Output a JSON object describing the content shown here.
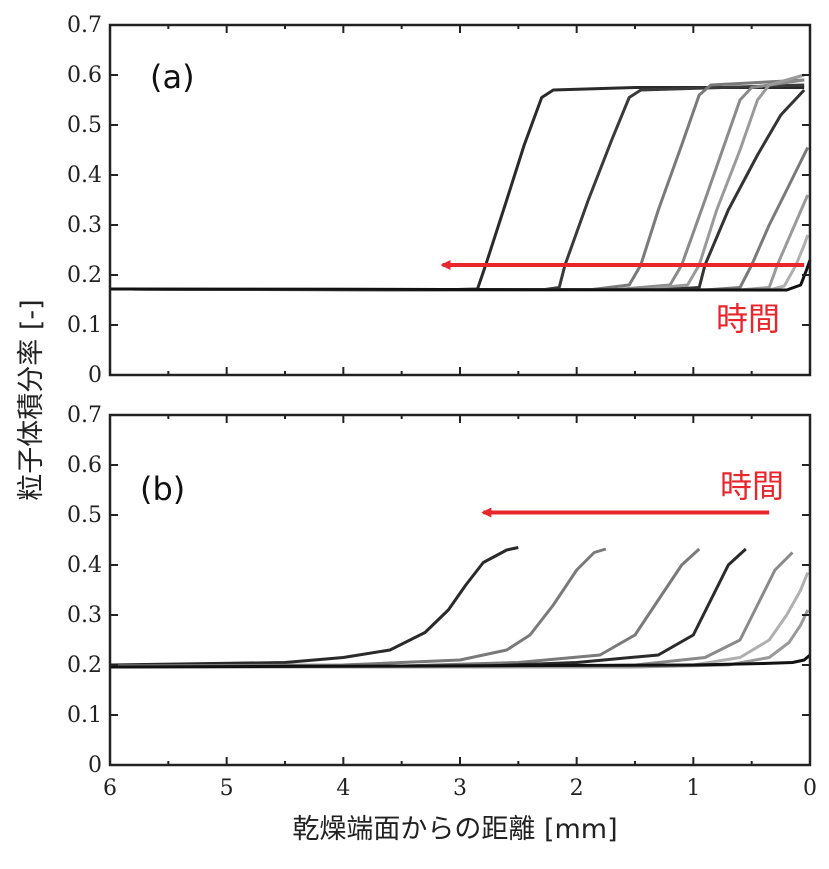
{
  "chart_data": [
    {
      "type": "line",
      "panel_label": "(a)",
      "xlim": [
        6,
        0
      ],
      "ylim": [
        0,
        0.7
      ],
      "x_ticks": [
        "6",
        "5",
        "4",
        "3",
        "2",
        "1",
        "0"
      ],
      "y_ticks": [
        "0",
        "0.1",
        "0.2",
        "0.3",
        "0.4",
        "0.5",
        "0.6",
        "0.7"
      ],
      "annotation": {
        "text": "時間",
        "color": "#e8262c",
        "arrow_from_x": 0.05,
        "arrow_to_x": 3.15,
        "arrow_y": 0.22
      },
      "series": [
        {
          "color": "#2a2a2a",
          "points": [
            [
              6,
              0.172
            ],
            [
              3.2,
              0.17
            ],
            [
              2.85,
              0.172
            ],
            [
              2.78,
              0.22
            ],
            [
              2.6,
              0.35
            ],
            [
              2.45,
              0.46
            ],
            [
              2.3,
              0.555
            ],
            [
              2.2,
              0.57
            ],
            [
              1.5,
              0.575
            ],
            [
              0.05,
              0.575
            ]
          ]
        },
        {
          "color": "#3a3a3a",
          "points": [
            [
              6,
              0.172
            ],
            [
              2.3,
              0.17
            ],
            [
              2.15,
              0.175
            ],
            [
              2.1,
              0.22
            ],
            [
              1.9,
              0.35
            ],
            [
              1.7,
              0.47
            ],
            [
              1.55,
              0.555
            ],
            [
              1.45,
              0.57
            ],
            [
              0.05,
              0.58
            ]
          ]
        },
        {
          "color": "#7a7a7a",
          "points": [
            [
              6,
              0.172
            ],
            [
              1.9,
              0.17
            ],
            [
              1.55,
              0.18
            ],
            [
              1.45,
              0.22
            ],
            [
              1.3,
              0.33
            ],
            [
              1.1,
              0.46
            ],
            [
              0.95,
              0.56
            ],
            [
              0.85,
              0.58
            ],
            [
              0.05,
              0.59
            ]
          ]
        },
        {
          "color": "#8a8a8a",
          "points": [
            [
              6,
              0.172
            ],
            [
              1.7,
              0.17
            ],
            [
              1.2,
              0.18
            ],
            [
              1.1,
              0.22
            ],
            [
              0.9,
              0.35
            ],
            [
              0.75,
              0.45
            ],
            [
              0.6,
              0.55
            ],
            [
              0.5,
              0.575
            ],
            [
              0.05,
              0.59
            ]
          ]
        },
        {
          "color": "#9a9a9a",
          "points": [
            [
              6,
              0.172
            ],
            [
              1.5,
              0.17
            ],
            [
              1.05,
              0.18
            ],
            [
              0.95,
              0.22
            ],
            [
              0.8,
              0.33
            ],
            [
              0.6,
              0.45
            ],
            [
              0.45,
              0.55
            ],
            [
              0.35,
              0.58
            ],
            [
              0.05,
              0.6
            ]
          ]
        },
        {
          "color": "#333333",
          "points": [
            [
              6,
              0.172
            ],
            [
              1.3,
              0.17
            ],
            [
              0.95,
              0.175
            ],
            [
              0.9,
              0.22
            ],
            [
              0.7,
              0.33
            ],
            [
              0.45,
              0.44
            ],
            [
              0.25,
              0.52
            ],
            [
              0.05,
              0.57
            ]
          ]
        },
        {
          "color": "#7a7a7a",
          "points": [
            [
              6,
              0.172
            ],
            [
              0.9,
              0.17
            ],
            [
              0.6,
              0.175
            ],
            [
              0.5,
              0.22
            ],
            [
              0.35,
              0.3
            ],
            [
              0.2,
              0.37
            ],
            [
              0.02,
              0.455
            ]
          ]
        },
        {
          "color": "#9a9a9a",
          "points": [
            [
              6,
              0.172
            ],
            [
              0.6,
              0.17
            ],
            [
              0.35,
              0.175
            ],
            [
              0.28,
              0.22
            ],
            [
              0.15,
              0.29
            ],
            [
              0.02,
              0.36
            ]
          ]
        },
        {
          "color": "#b0b0b0",
          "points": [
            [
              6,
              0.172
            ],
            [
              0.35,
              0.17
            ],
            [
              0.22,
              0.178
            ],
            [
              0.12,
              0.22
            ],
            [
              0.05,
              0.26
            ],
            [
              0.02,
              0.28
            ]
          ]
        },
        {
          "color": "#111111",
          "points": [
            [
              6,
              0.172
            ],
            [
              0.2,
              0.17
            ],
            [
              0.08,
              0.18
            ],
            [
              0.03,
              0.21
            ],
            [
              0.0,
              0.23
            ]
          ]
        }
      ]
    },
    {
      "type": "line",
      "panel_label": "(b)",
      "xlim": [
        6,
        0
      ],
      "ylim": [
        0,
        0.7
      ],
      "x_ticks": [
        "6",
        "5",
        "4",
        "3",
        "2",
        "1",
        "0"
      ],
      "y_ticks": [
        "0",
        "0.1",
        "0.2",
        "0.3",
        "0.4",
        "0.5",
        "0.6",
        "0.7"
      ],
      "xlabel": "乾燥端面からの距離 [mm]",
      "annotation": {
        "text": "時間",
        "color": "#e8262c",
        "arrow_from_x": 0.35,
        "arrow_to_x": 2.8,
        "arrow_y": 0.505
      },
      "series": [
        {
          "color": "#2a2a2a",
          "points": [
            [
              6,
              0.2
            ],
            [
              4.5,
              0.205
            ],
            [
              4.0,
              0.215
            ],
            [
              3.6,
              0.23
            ],
            [
              3.3,
              0.265
            ],
            [
              3.1,
              0.31
            ],
            [
              2.95,
              0.36
            ],
            [
              2.8,
              0.405
            ],
            [
              2.6,
              0.43
            ],
            [
              2.5,
              0.435
            ]
          ]
        },
        {
          "color": "#7a7a7a",
          "points": [
            [
              6,
              0.198
            ],
            [
              4.0,
              0.2
            ],
            [
              3.0,
              0.21
            ],
            [
              2.6,
              0.23
            ],
            [
              2.4,
              0.26
            ],
            [
              2.2,
              0.32
            ],
            [
              2.0,
              0.39
            ],
            [
              1.85,
              0.425
            ],
            [
              1.75,
              0.432
            ]
          ]
        },
        {
          "color": "#7a7a7a",
          "points": [
            [
              6,
              0.196
            ],
            [
              3.5,
              0.198
            ],
            [
              2.5,
              0.205
            ],
            [
              1.8,
              0.22
            ],
            [
              1.5,
              0.26
            ],
            [
              1.3,
              0.33
            ],
            [
              1.1,
              0.4
            ],
            [
              0.95,
              0.432
            ]
          ]
        },
        {
          "color": "#2a2a2a",
          "points": [
            [
              6,
              0.196
            ],
            [
              3.0,
              0.196
            ],
            [
              2.0,
              0.205
            ],
            [
              1.3,
              0.22
            ],
            [
              1.0,
              0.26
            ],
            [
              0.85,
              0.33
            ],
            [
              0.7,
              0.4
            ],
            [
              0.55,
              0.432
            ]
          ]
        },
        {
          "color": "#8a8a8a",
          "points": [
            [
              6,
              0.196
            ],
            [
              2.5,
              0.196
            ],
            [
              1.5,
              0.2
            ],
            [
              0.9,
              0.215
            ],
            [
              0.6,
              0.25
            ],
            [
              0.45,
              0.32
            ],
            [
              0.3,
              0.39
            ],
            [
              0.15,
              0.425
            ]
          ]
        },
        {
          "color": "#b0b0b0",
          "points": [
            [
              6,
              0.196
            ],
            [
              2.0,
              0.196
            ],
            [
              1.0,
              0.2
            ],
            [
              0.6,
              0.215
            ],
            [
              0.35,
              0.25
            ],
            [
              0.2,
              0.3
            ],
            [
              0.08,
              0.35
            ],
            [
              0.02,
              0.385
            ]
          ]
        },
        {
          "color": "#9a9a9a",
          "points": [
            [
              6,
              0.196
            ],
            [
              1.5,
              0.196
            ],
            [
              0.7,
              0.2
            ],
            [
              0.35,
              0.215
            ],
            [
              0.18,
              0.245
            ],
            [
              0.08,
              0.28
            ],
            [
              0.02,
              0.31
            ]
          ]
        },
        {
          "color": "#111111",
          "points": [
            [
              6,
              0.196
            ],
            [
              1.0,
              0.2
            ],
            [
              0.4,
              0.203
            ],
            [
              0.15,
              0.205
            ],
            [
              0.05,
              0.21
            ],
            [
              0.0,
              0.22
            ]
          ]
        }
      ]
    }
  ],
  "ylabel": "粒子体積分率 [-]"
}
